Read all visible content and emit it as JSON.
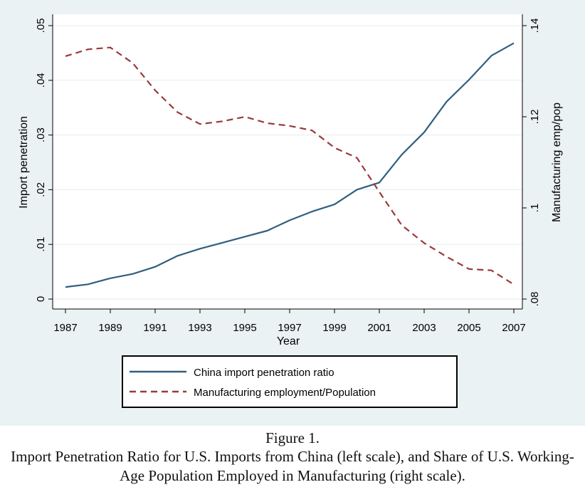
{
  "chart_data": {
    "type": "line",
    "xlabel": "Year",
    "ylabel_left": "Import penetration",
    "ylabel_right": "Manufacturing emp/pop",
    "x": [
      1987,
      1988,
      1989,
      1990,
      1991,
      1992,
      1993,
      1994,
      1995,
      1996,
      1997,
      1998,
      1999,
      2000,
      2001,
      2002,
      2003,
      2004,
      2005,
      2006,
      2007
    ],
    "x_ticks": [
      "1987",
      "1989",
      "1991",
      "1993",
      "1995",
      "1997",
      "1999",
      "2001",
      "2003",
      "2005",
      "2007"
    ],
    "ylim_left": [
      0,
      0.05
    ],
    "y_ticks_left": [
      ".05",
      ".04",
      ".03",
      ".02",
      ".01",
      "0"
    ],
    "ylim_right": [
      0.08,
      0.14
    ],
    "y_ticks_right": [
      ".14",
      ".12",
      ".1",
      ".08"
    ],
    "grid": "horizontal",
    "legend_position": "bottom",
    "series": [
      {
        "name": "China import penetration ratio",
        "axis": "left",
        "color": "#2f5f80",
        "style": "solid",
        "values": [
          0.0022,
          0.0027,
          0.0038,
          0.0046,
          0.0059,
          0.0079,
          0.0092,
          0.0103,
          0.0114,
          0.0125,
          0.0144,
          0.016,
          0.0173,
          0.02,
          0.0213,
          0.0264,
          0.0305,
          0.0361,
          0.0401,
          0.0445,
          0.0468
        ]
      },
      {
        "name": "Manufacturing employment/Population",
        "axis": "right",
        "color": "#9b3a3a",
        "style": "dashed",
        "values": [
          0.1333,
          0.1348,
          0.1352,
          0.1318,
          0.1258,
          0.121,
          0.1184,
          0.119,
          0.12,
          0.1186,
          0.118,
          0.117,
          0.1132,
          0.111,
          0.1035,
          0.0962,
          0.0923,
          0.0893,
          0.0866,
          0.0863,
          0.0832
        ]
      }
    ]
  },
  "caption": {
    "figure_number": "Figure 1.",
    "title": "Import Penetration Ratio for U.S. Imports from China (left scale), and Share of U.S. Working-Age Population Employed in Manufacturing (right scale)."
  }
}
